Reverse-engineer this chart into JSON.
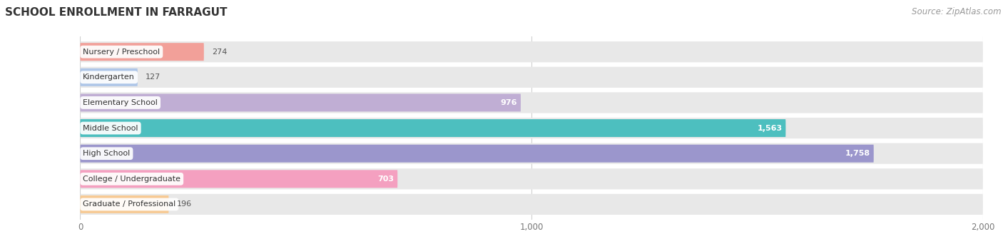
{
  "title": "SCHOOL ENROLLMENT IN FARRAGUT",
  "source": "Source: ZipAtlas.com",
  "categories": [
    "Nursery / Preschool",
    "Kindergarten",
    "Elementary School",
    "Middle School",
    "High School",
    "College / Undergraduate",
    "Graduate / Professional"
  ],
  "values": [
    274,
    127,
    976,
    1563,
    1758,
    703,
    196
  ],
  "bar_colors": [
    "#f2a099",
    "#aec6e8",
    "#c0aed4",
    "#4dbfbf",
    "#9b96cc",
    "#f4a0c0",
    "#f7ca94"
  ],
  "bar_bg_color": "#e8e8e8",
  "xlim_max": 2000,
  "xticks": [
    0,
    1000,
    2000
  ],
  "value_color_light": "#ffffff",
  "value_color_dark": "#555555",
  "title_fontsize": 11,
  "source_fontsize": 8.5,
  "background_color": "#ffffff",
  "threshold_inside": 500
}
